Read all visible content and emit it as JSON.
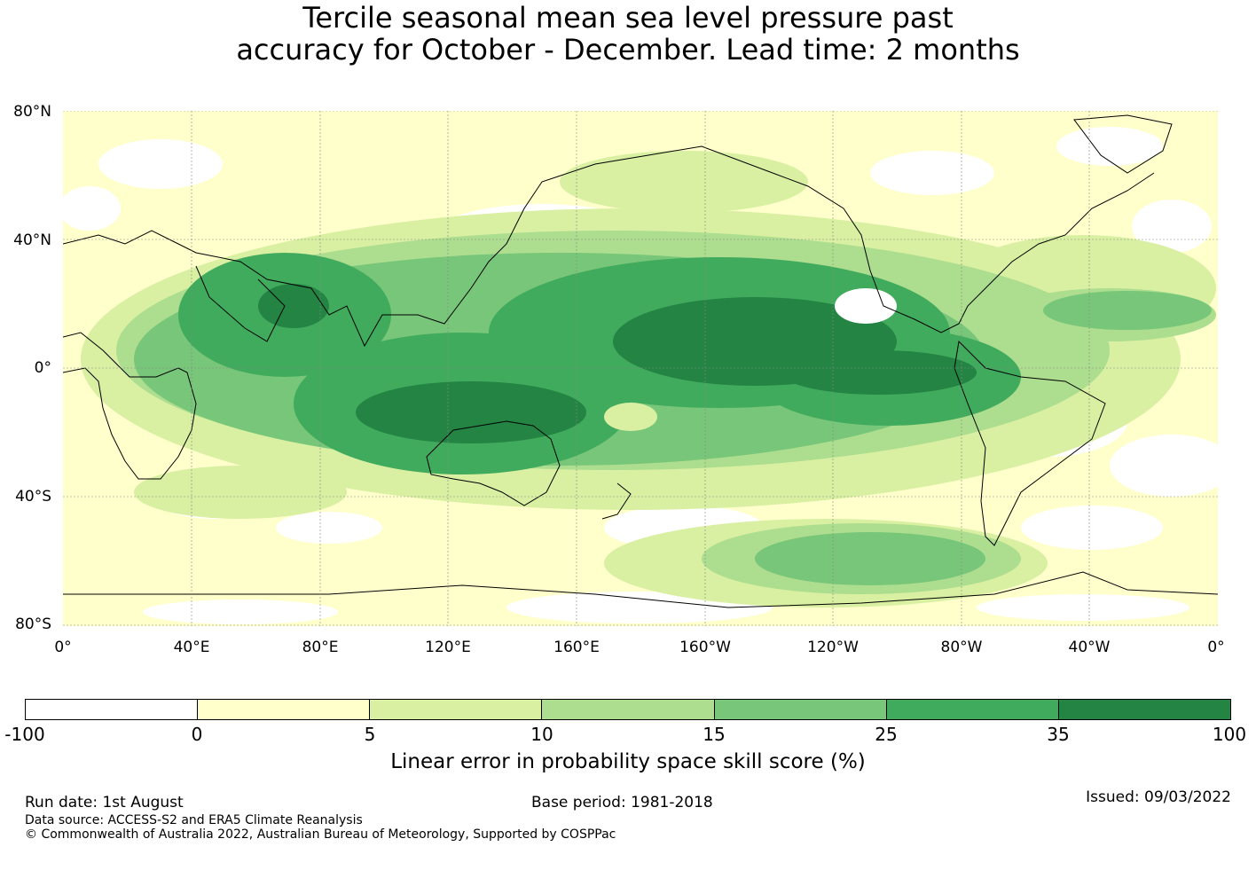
{
  "title": {
    "line1": "Tercile seasonal mean sea level pressure past",
    "line2": "accuracy for October - December. Lead time: 2 months"
  },
  "map": {
    "lat_labels": [
      "80°N",
      "40°N",
      "0°",
      "40°S",
      "80°S"
    ],
    "lon_labels": [
      "0°",
      "40°E",
      "80°E",
      "120°E",
      "160°E",
      "160°W",
      "120°W",
      "80°W",
      "40°W",
      "0°"
    ],
    "grid": true
  },
  "legend": {
    "title": "Linear error in probability space skill score (%)",
    "ticks": [
      "-100",
      "0",
      "5",
      "10",
      "15",
      "25",
      "35",
      "100"
    ],
    "colors": [
      "#ffffff",
      "#ffffcc",
      "#d9f0a3",
      "#addd8e",
      "#78c679",
      "#41ab5d",
      "#238443"
    ]
  },
  "footer": {
    "run_date": "Run date: 1st August",
    "base_period": "Base period: 1981-2018",
    "issued": "Issued: 09/03/2022",
    "data_source": "Data source: ACCESS-S2 and ERA5 Climate Reanalysis",
    "copyright": "© Commonwealth of Australia 2022, Australian Bureau of Meteorology, Supported by COSPPac"
  }
}
